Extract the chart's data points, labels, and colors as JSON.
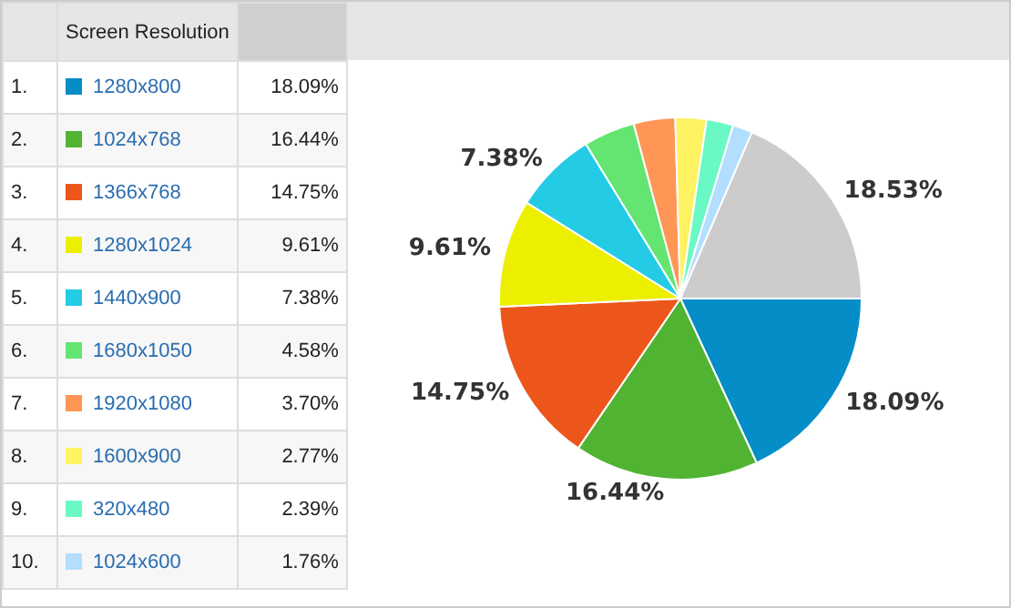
{
  "chart_data": {
    "type": "pie",
    "xlabel": "Screen Resolution",
    "legend": "left",
    "annotations": [
      "1.",
      "2.",
      "3.",
      "4.",
      "5.",
      "6.",
      "7.",
      "8.",
      "9.",
      "10."
    ],
    "categories": [
      "1280x800",
      "1024x768",
      "1366x768",
      "1280x1024",
      "1440x900",
      "1680x1050",
      "1920x1080",
      "1600x900",
      "320x480",
      "1024x600",
      null
    ],
    "values": [
      18.09,
      16.44,
      14.75,
      9.61,
      7.38,
      4.58,
      3.7,
      2.77,
      2.39,
      1.76,
      18.53
    ],
    "value_labels": [
      "18.09%",
      "16.44%",
      "14.75%",
      "9.61%",
      "7.38%",
      "4.58%",
      "3.70%",
      "2.77%",
      "2.39%",
      "1.76%",
      "18.53%"
    ],
    "colors": [
      "#058dc7",
      "#50b432",
      "#ed561b",
      "#edef00",
      "#24cbe5",
      "#64e572",
      "#ff9655",
      "#fff263",
      "#6af9c4",
      "#b2deff",
      "#cccccc"
    ]
  }
}
